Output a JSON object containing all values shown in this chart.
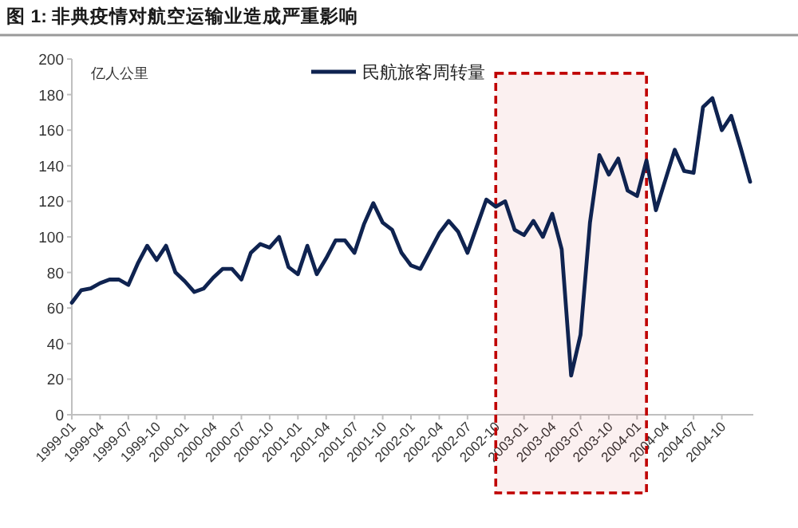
{
  "chart_data": {
    "type": "line",
    "title": "图 1: 非典疫情对航空运输业造成严重影响",
    "ylabel": "亿人公里",
    "x": [
      "1999-01",
      "1999-02",
      "1999-03",
      "1999-04",
      "1999-05",
      "1999-06",
      "1999-07",
      "1999-08",
      "1999-09",
      "1999-10",
      "1999-11",
      "1999-12",
      "2000-01",
      "2000-02",
      "2000-03",
      "2000-04",
      "2000-05",
      "2000-06",
      "2000-07",
      "2000-08",
      "2000-09",
      "2000-10",
      "2000-11",
      "2000-12",
      "2001-01",
      "2001-02",
      "2001-03",
      "2001-04",
      "2001-05",
      "2001-06",
      "2001-07",
      "2001-08",
      "2001-09",
      "2001-10",
      "2001-11",
      "2001-12",
      "2002-01",
      "2002-02",
      "2002-03",
      "2002-04",
      "2002-05",
      "2002-06",
      "2002-07",
      "2002-08",
      "2002-09",
      "2002-10",
      "2002-11",
      "2002-12",
      "2003-01",
      "2003-02",
      "2003-03",
      "2003-04",
      "2003-05",
      "2003-06",
      "2003-07",
      "2003-08",
      "2003-09",
      "2003-10",
      "2003-11",
      "2003-12",
      "2004-01",
      "2004-02",
      "2004-03",
      "2004-04",
      "2004-05",
      "2004-06",
      "2004-07",
      "2004-08",
      "2004-09",
      "2004-10",
      "2004-11",
      "2004-12",
      "2005-01"
    ],
    "series": [
      {
        "name": "民航旅客周转量",
        "color": "#0f2350",
        "values": [
          63,
          70,
          71,
          74,
          76,
          76,
          73,
          85,
          95,
          87,
          95,
          80,
          75,
          69,
          71,
          77,
          82,
          82,
          76,
          91,
          96,
          94,
          100,
          83,
          79,
          95,
          79,
          88,
          98,
          98,
          91,
          107,
          119,
          108,
          104,
          91,
          84,
          82,
          92,
          102,
          109,
          103,
          91,
          106,
          121,
          117,
          120,
          104,
          101,
          109,
          100,
          113,
          93,
          22,
          45,
          108,
          146,
          135,
          144,
          126,
          123,
          143,
          115,
          132,
          149,
          137,
          136,
          173,
          178,
          160,
          168,
          150,
          131
        ]
      }
    ],
    "xlim": [
      "1999-01",
      "2005-01"
    ],
    "xticks": [
      {
        "value": "1999-01",
        "label": "1999-01"
      },
      {
        "value": "1999-04",
        "label": "1999-04"
      },
      {
        "value": "1999-07",
        "label": "1999-07"
      },
      {
        "value": "1999-10",
        "label": "1999-10"
      },
      {
        "value": "2000-01",
        "label": "2000-01"
      },
      {
        "value": "2000-04",
        "label": "2000-04"
      },
      {
        "value": "2000-07",
        "label": "2000-07"
      },
      {
        "value": "2000-10",
        "label": "2000-10"
      },
      {
        "value": "2001-01",
        "label": "2001-01"
      },
      {
        "value": "2001-04",
        "label": "2001-04"
      },
      {
        "value": "2001-07",
        "label": "2001-07"
      },
      {
        "value": "2001-10",
        "label": "2001-10"
      },
      {
        "value": "2002-01",
        "label": "2002-01"
      },
      {
        "value": "2002-04",
        "label": "2002-04"
      },
      {
        "value": "2002-07",
        "label": "2002-07"
      },
      {
        "value": "2002-10",
        "label": "2002-10"
      },
      {
        "value": "2003-01",
        "label": "2003-01"
      },
      {
        "value": "2003-04",
        "label": "2003-04"
      },
      {
        "value": "2003-07",
        "label": "2003-07"
      },
      {
        "value": "2003-10",
        "label": "2003-10"
      },
      {
        "value": "2004-01",
        "label": "2004-01"
      },
      {
        "value": "2004-04",
        "label": "2004-04"
      },
      {
        "value": "2004-07",
        "label": "2004-07"
      },
      {
        "value": "2004-10",
        "label": "2004-10"
      }
    ],
    "ylim": [
      0,
      200
    ],
    "yticks": [
      0,
      20,
      40,
      60,
      80,
      100,
      120,
      140,
      160,
      180,
      200
    ],
    "bands": [
      {
        "axis": "x",
        "from": "2002-10",
        "to": "2004-02",
        "color": "#c00000"
      }
    ],
    "legend": "top",
    "marker": "none",
    "line_style": "solid",
    "grid": false
  }
}
